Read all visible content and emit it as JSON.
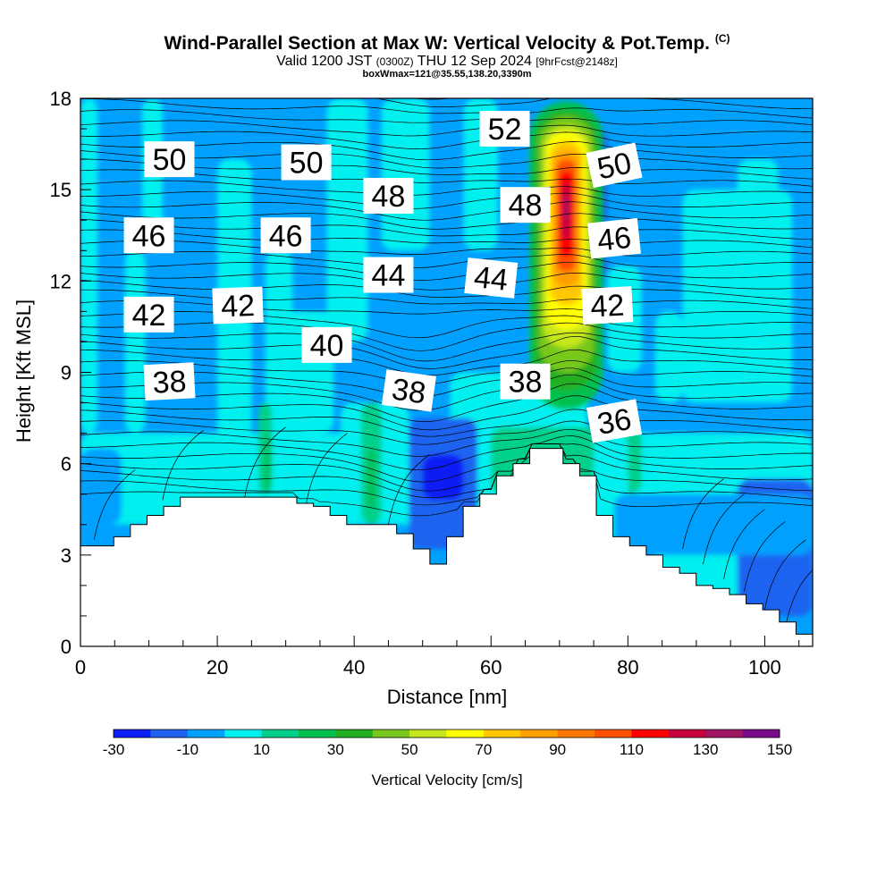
{
  "chart_data": {
    "type": "heatmap",
    "title": "Wind-Parallel Section at Max W: Vertical Velocity & Pot.Temp.",
    "title_mark": "(C)",
    "subtitle_main": "Valid 1200 JST",
    "subtitle_utc": "(0300Z)",
    "subtitle_date": "THU 12 Sep 2024",
    "subtitle_fcst": "[9hrFcst@2148z]",
    "subtitle2": "boxWmax=121@35.55,138.20,3390m",
    "xlabel": "Distance [nm]",
    "ylabel": "Height [Kft MSL]",
    "xlim": [
      0,
      107
    ],
    "ylim": [
      0,
      18
    ],
    "x_ticks": [
      "0",
      "20",
      "40",
      "60",
      "80",
      "100"
    ],
    "y_ticks": [
      "0",
      "3",
      "6",
      "9",
      "12",
      "15",
      "18"
    ],
    "colorbar": {
      "label": "Vertical Velocity [cm/s]",
      "tick_labels": [
        "-30",
        "-10",
        "10",
        "30",
        "50",
        "70",
        "90",
        "110",
        "130",
        "150"
      ],
      "colors": [
        "#0a1ef5",
        "#1e64f0",
        "#00a0ff",
        "#00f0f0",
        "#00d08c",
        "#00c050",
        "#20b020",
        "#78c81e",
        "#c8e61e",
        "#ffff00",
        "#ffc800",
        "#ffa000",
        "#ff7800",
        "#ff5000",
        "#ff0000",
        "#c8003c",
        "#a01464",
        "#780a8c"
      ]
    },
    "theta_labels": [
      "50",
      "50",
      "52",
      "50",
      "46",
      "46",
      "48",
      "48",
      "46",
      "44",
      "44",
      "42",
      "42",
      "42",
      "40",
      "38",
      "38",
      "38",
      "36"
    ],
    "terrain_height_kft": [
      3.3,
      3.3,
      3.6,
      4.0,
      4.3,
      4.6,
      4.9,
      4.9,
      4.9,
      4.9,
      4.9,
      4.9,
      4.9,
      4.7,
      4.6,
      4.3,
      4.0,
      4.0,
      4.0,
      3.7,
      3.2,
      2.7,
      3.6,
      4.6,
      5.0,
      5.6,
      6.0,
      6.5,
      6.5,
      6.0,
      5.6,
      4.3,
      3.6,
      3.3,
      3.0,
      2.6,
      2.4,
      2.0,
      1.9,
      1.7,
      1.4,
      1.2,
      0.8,
      0.4
    ],
    "updraft_max_cm_s": 121,
    "updraft_location_nm": 71,
    "downdraft_location_nm": 53,
    "downdraft_height_kft": 5.6
  }
}
